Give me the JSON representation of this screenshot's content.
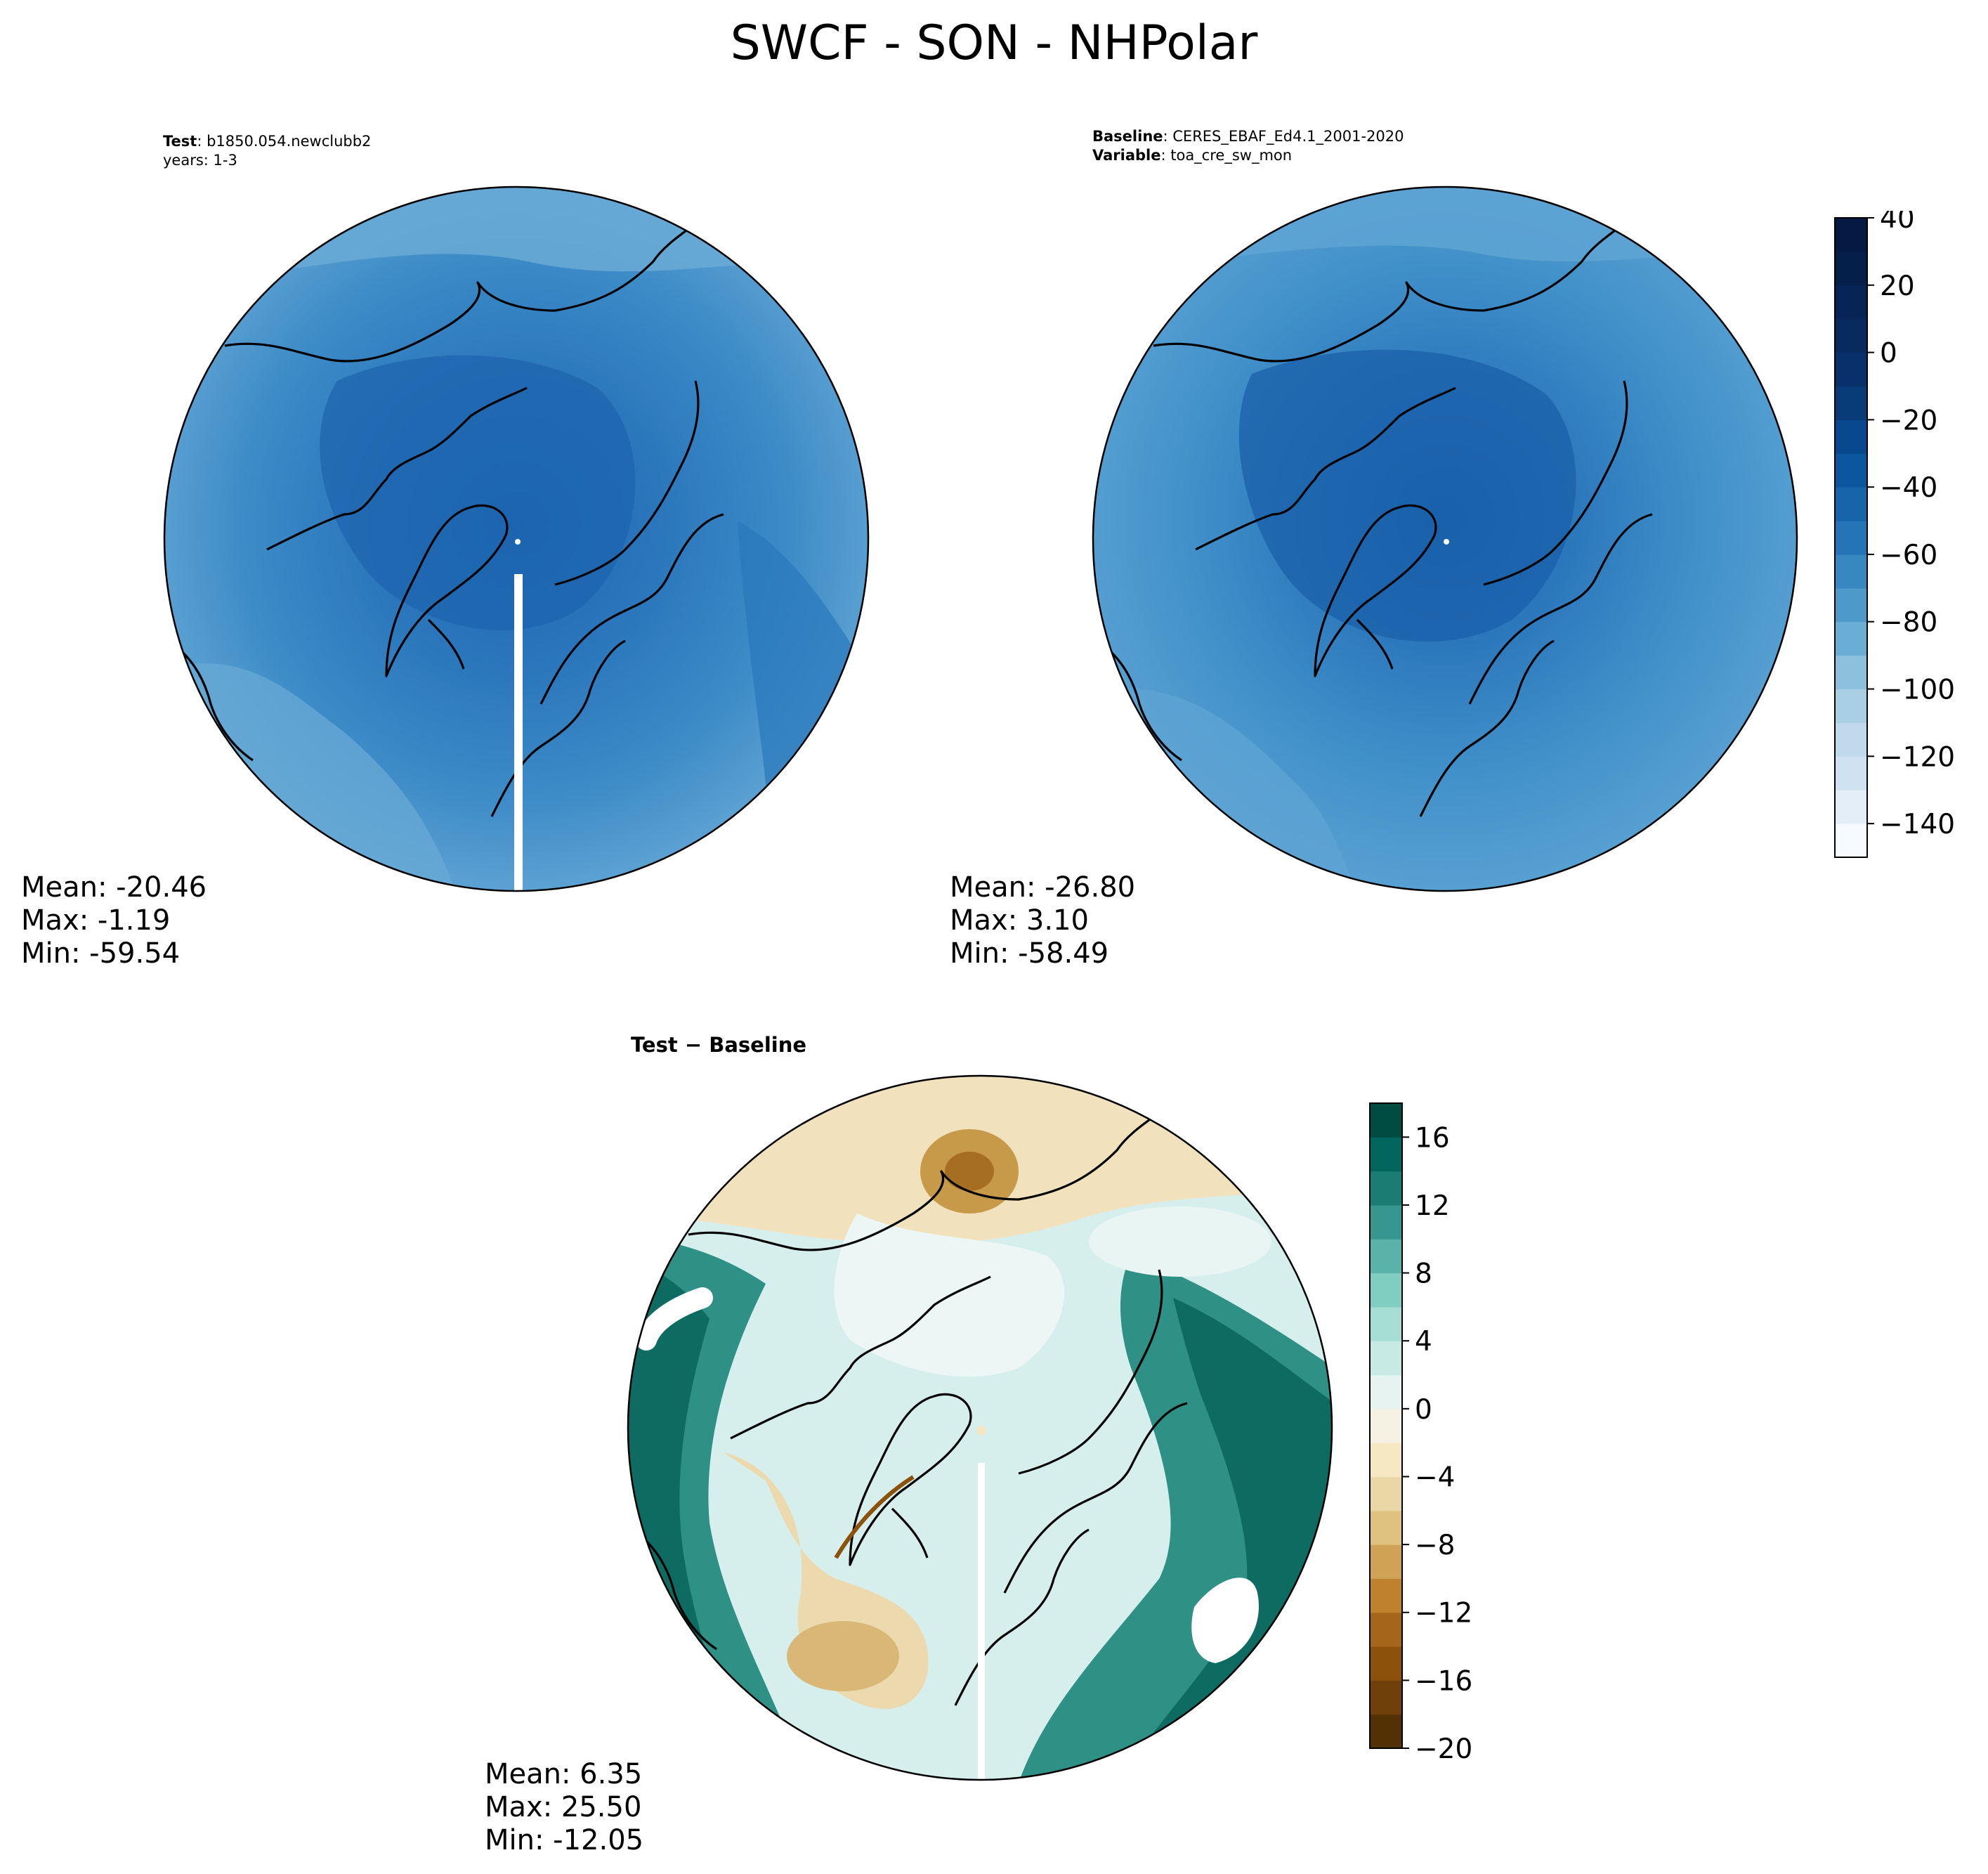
{
  "title": "SWCF - SON - NHPolar",
  "panels": {
    "test": {
      "header_line1_bold": "Test",
      "header_line1_text": ": b1850.054.newclubb2",
      "header_line2_text": "years: 1-3",
      "stats": {
        "mean": "Mean: -20.46",
        "max": "Max: -1.19",
        "min": "Min: -59.54"
      }
    },
    "baseline": {
      "header_line1_bold": "Baseline",
      "header_line1_text": ": CERES_EBAF_Ed4.1_2001-2020",
      "header_line2_bold": "Variable",
      "header_line2_text": ": toa_cre_sw_mon",
      "stats": {
        "mean": "Mean: -26.80",
        "max": "Max:  3.10",
        "min": "Min: -58.49"
      }
    },
    "diff": {
      "title": "Test − Baseline",
      "stats": {
        "mean": "Mean:  6.35",
        "max": "Max: 25.50",
        "min": "Min: -12.05"
      }
    }
  },
  "chart_data": [
    {
      "type": "heatmap",
      "projection": "north-polar-stereographic",
      "panel": "test",
      "summary": {
        "mean": -20.46,
        "max": -1.19,
        "min": -59.54
      },
      "dominant_colors": [
        "#2171b5",
        "#3a88c4",
        "#5a9fd0"
      ]
    },
    {
      "type": "heatmap",
      "projection": "north-polar-stereographic",
      "panel": "baseline",
      "summary": {
        "mean": -26.8,
        "max": 3.1,
        "min": -58.49
      },
      "dominant_colors": [
        "#1f6db2",
        "#3d8ac6",
        "#5aa0d2"
      ]
    },
    {
      "type": "heatmap",
      "projection": "north-polar-stereographic",
      "panel": "diff",
      "summary": {
        "mean": 6.35,
        "max": 25.5,
        "min": -12.05
      }
    },
    {
      "type": "colorbar",
      "panel": "test-baseline-shared",
      "levels_from": -150,
      "levels_to": 40,
      "tick_labels": [
        "40",
        "20",
        "0",
        "−20",
        "−40",
        "−60",
        "−80",
        "−100",
        "−120",
        "−140"
      ],
      "tick_values": [
        40,
        20,
        0,
        -20,
        -40,
        -60,
        -80,
        -100,
        -120,
        -140
      ],
      "colors": [
        "#f7fbff",
        "#e3eef9",
        "#d0e1f2",
        "#c1d9ed",
        "#a9cfe5",
        "#8dc0dd",
        "#6aaed6",
        "#4d99ca",
        "#3787c0",
        "#2474b7",
        "#1764ab",
        "#0c56a0",
        "#08488e",
        "#083b7a",
        "#08306b",
        "#072a5f",
        "#062455",
        "#051e4a",
        "#041a42"
      ],
      "scale": "linear"
    },
    {
      "type": "colorbar",
      "panel": "diff",
      "levels_from": -20,
      "levels_to": 18,
      "tick_labels": [
        "16",
        "12",
        "8",
        "4",
        "0",
        "−4",
        "−8",
        "−12",
        "−16",
        "−20"
      ],
      "tick_values": [
        16,
        12,
        8,
        4,
        0,
        -4,
        -8,
        -12,
        -16,
        -20
      ],
      "colors": [
        "#543005",
        "#6f4009",
        "#8c510a",
        "#a5661a",
        "#bf812d",
        "#cfa255",
        "#dfc27d",
        "#ebd7a5",
        "#f6e8c3",
        "#f5f1e3",
        "#e6f3f1",
        "#c7eae5",
        "#a6ded6",
        "#80cdc1",
        "#5ab2a8",
        "#35978f",
        "#1a7d74",
        "#01665e",
        "#004c42"
      ],
      "scale": "linear"
    }
  ]
}
